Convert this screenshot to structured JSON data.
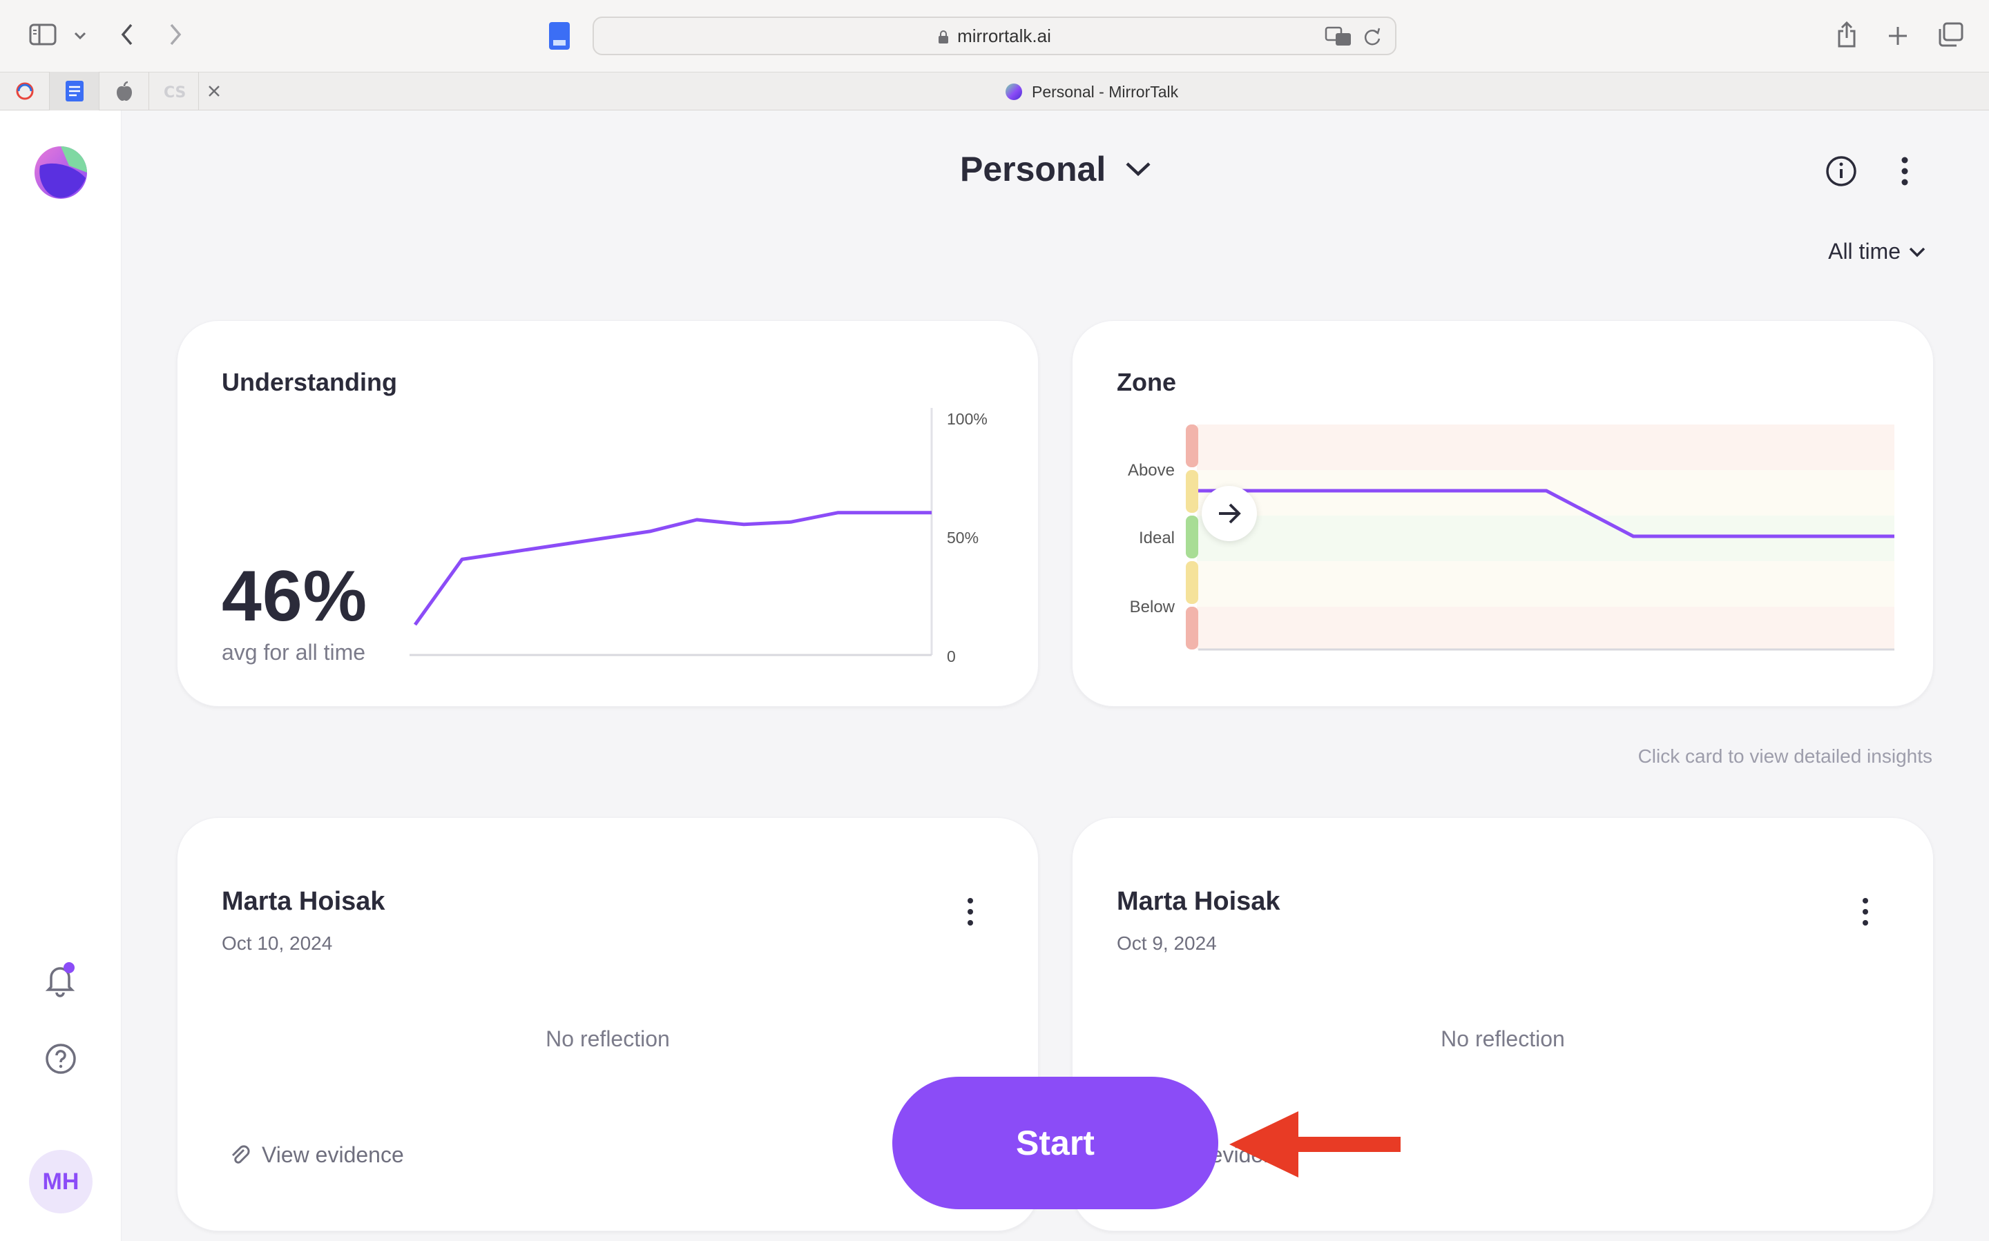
{
  "browser": {
    "url": "mirrortalk.ai",
    "active_tab_title": "Personal - MirrorTalk"
  },
  "header": {
    "title": "Personal",
    "time_filter": "All time"
  },
  "rail": {
    "avatar_initials": "MH"
  },
  "understanding_card": {
    "title": "Understanding",
    "value": "46%",
    "caption": "avg for all time",
    "ytick_top": "100%",
    "ytick_mid": "50%",
    "ytick_bottom": "0"
  },
  "zone_card": {
    "title": "Zone",
    "label_above": "Above",
    "label_ideal": "Ideal",
    "label_below": "Below"
  },
  "hint": "Click card to view detailed insights",
  "reflections": [
    {
      "name": "Marta Hoisak",
      "date": "Oct 10, 2024",
      "status": "No reflection",
      "evidence": "View evidence"
    },
    {
      "name": "Marta Hoisak",
      "date": "Oct 9, 2024",
      "status": "No reflection",
      "evidence": "View evidence"
    }
  ],
  "start_button": "Start",
  "chart_data": [
    {
      "type": "line",
      "title": "Understanding",
      "ylim": [
        0,
        100
      ],
      "yticks": [
        "0",
        "50%",
        "100%"
      ],
      "series": [
        {
          "values": [
            13,
            41,
            44,
            47,
            50,
            53,
            58,
            56,
            57,
            61,
            61,
            61
          ]
        }
      ]
    },
    {
      "type": "line",
      "title": "Zone",
      "categories_y": [
        "Below",
        "Ideal",
        "Above"
      ],
      "series": [
        {
          "values": [
            "Above",
            "Above",
            "Above",
            "Above",
            "Above",
            "Ideal",
            "Ideal",
            "Ideal",
            "Ideal"
          ]
        }
      ]
    }
  ],
  "colors": {
    "accent": "#8b4cf7",
    "zone_red": "#f2b4ab",
    "zone_yellow": "#f5e29a",
    "zone_green": "#a8dd95",
    "annotation_arrow": "#e83b25"
  }
}
